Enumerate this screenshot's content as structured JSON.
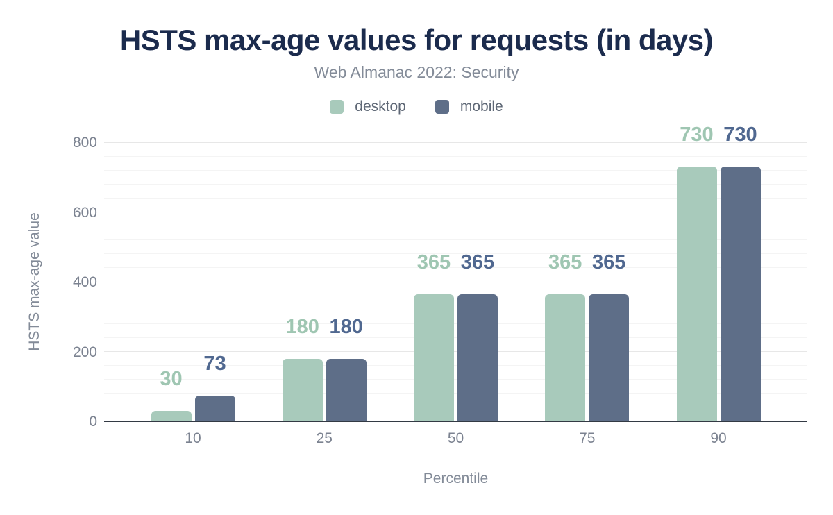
{
  "figure": {
    "title": "HSTS max-age values for requests (in days)",
    "subtitle": "Web Almanac 2022: Security"
  },
  "chart_data": {
    "type": "bar",
    "title": "HSTS max-age values for requests (in days)",
    "subtitle": "Web Almanac 2022: Security",
    "xlabel": "Percentile",
    "ylabel": "HSTS max-age value",
    "categories": [
      "10",
      "25",
      "50",
      "75",
      "90"
    ],
    "series": [
      {
        "name": "desktop",
        "color": "#a8cabb",
        "label_color": "#9fc6b2",
        "values": [
          30,
          180,
          365,
          365,
          730
        ]
      },
      {
        "name": "mobile",
        "color": "#5e6e88",
        "label_color": "#506890",
        "values": [
          73,
          180,
          365,
          365,
          730
        ]
      }
    ],
    "ylim": [
      0,
      800
    ],
    "yticks": [
      0,
      200,
      400,
      600,
      800
    ],
    "minor_grid_step": 40,
    "major_grid_step": 200,
    "grid": true,
    "legend_position": "top",
    "data_labels": true
  },
  "colors": {
    "title": "#1b2b4d",
    "subtitle": "#838b98",
    "axis_text": "#7b8290",
    "baseline": "#333a44",
    "background": "#ffffff"
  }
}
